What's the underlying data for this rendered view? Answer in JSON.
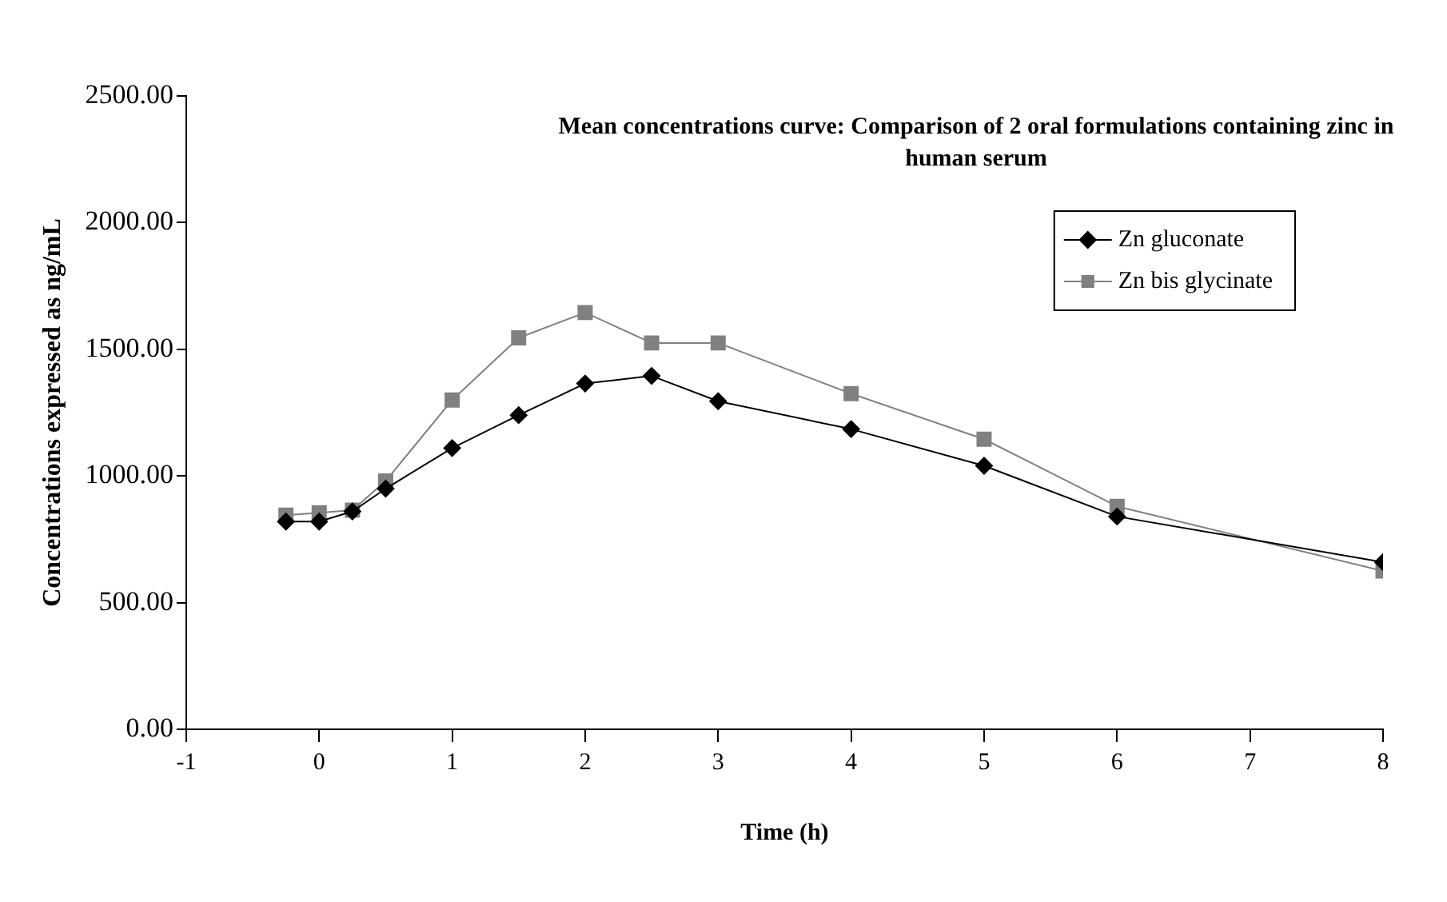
{
  "chart_data": {
    "type": "line",
    "title": "Mean concentrations curve: Comparison of 2 oral formulations containing zinc in human serum",
    "xlabel": "Time (h)",
    "ylabel": "Concentrations expressed as ng/mL",
    "x": [
      -0.25,
      0,
      0.25,
      0.5,
      1,
      1.5,
      2,
      2.5,
      3,
      4,
      5,
      6,
      8
    ],
    "series": [
      {
        "name": "Zn gluconate",
        "color": "#000000",
        "marker": "diamond",
        "values": [
          820,
          820,
          860,
          950,
          1110,
          1240,
          1365,
          1395,
          1295,
          1185,
          1040,
          840,
          660
        ]
      },
      {
        "name": "Zn bis glycinate",
        "color": "#808080",
        "marker": "square",
        "values": [
          845,
          855,
          865,
          980,
          1300,
          1545,
          1645,
          1525,
          1525,
          1325,
          1145,
          880,
          625
        ]
      }
    ],
    "xlim": [
      -1,
      8
    ],
    "xticks": [
      -1,
      0,
      1,
      2,
      3,
      4,
      5,
      6,
      7,
      8
    ],
    "ylim": [
      0,
      2500
    ],
    "yticks": [
      {
        "value": 0,
        "label": "0.00"
      },
      {
        "value": 500,
        "label": "500.00"
      },
      {
        "value": 1000,
        "label": "1000.00"
      },
      {
        "value": 1500,
        "label": "1500.00"
      },
      {
        "value": 2000,
        "label": "2000.00"
      },
      {
        "value": 2500,
        "label": "2500.00"
      }
    ],
    "grid": false,
    "legend": "top right",
    "line_style": "solid"
  }
}
